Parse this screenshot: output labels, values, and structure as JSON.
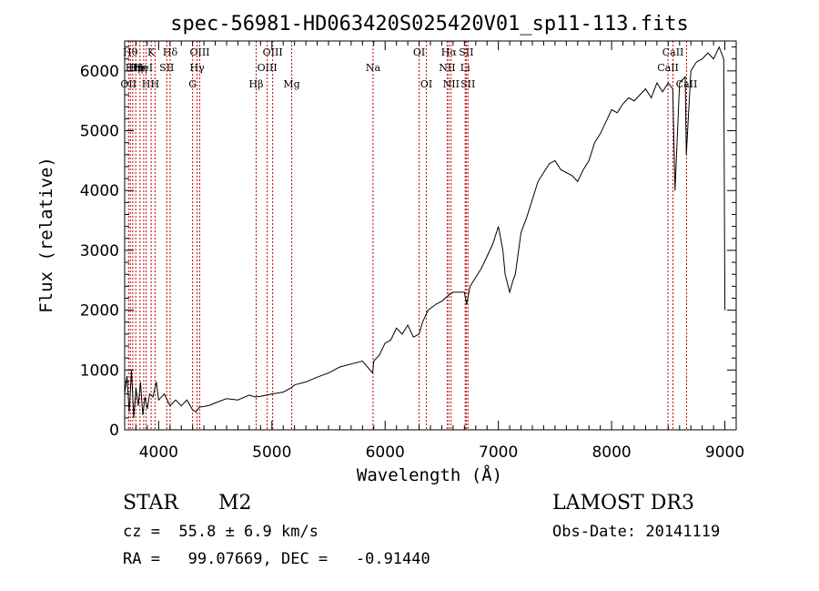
{
  "chart_data": {
    "type": "line",
    "title": "spec-56981-HD063420S025420V01_sp11-113.fits",
    "xlabel": "Wavelength (Å)",
    "ylabel": "Flux (relative)",
    "xlim": [
      3700,
      9100
    ],
    "ylim": [
      0,
      6500
    ],
    "xticks": [
      4000,
      5000,
      6000,
      7000,
      8000,
      9000
    ],
    "yticks": [
      0,
      1000,
      2000,
      3000,
      4000,
      5000,
      6000
    ],
    "grid": false,
    "series": [
      {
        "name": "flux",
        "color": "#000000",
        "x": [
          3700,
          3720,
          3740,
          3760,
          3780,
          3800,
          3820,
          3840,
          3860,
          3880,
          3900,
          3920,
          3950,
          3980,
          4000,
          4050,
          4100,
          4150,
          4200,
          4250,
          4300,
          4330,
          4360,
          4400,
          4450,
          4500,
          4600,
          4700,
          4800,
          4850,
          4900,
          5000,
          5100,
          5170,
          5200,
          5300,
          5400,
          5500,
          5600,
          5700,
          5800,
          5890,
          5900,
          5950,
          6000,
          6050,
          6100,
          6150,
          6200,
          6250,
          6300,
          6330,
          6380,
          6450,
          6500,
          6560,
          6600,
          6700,
          6720,
          6750,
          6800,
          6850,
          6900,
          6950,
          7000,
          7040,
          7060,
          7100,
          7130,
          7150,
          7200,
          7250,
          7300,
          7350,
          7400,
          7450,
          7500,
          7550,
          7600,
          7650,
          7700,
          7750,
          7800,
          7850,
          7900,
          7950,
          8000,
          8050,
          8100,
          8150,
          8200,
          8250,
          8300,
          8350,
          8400,
          8450,
          8500,
          8540,
          8560,
          8600,
          8650,
          8660,
          8700,
          8750,
          8800,
          8850,
          8900,
          8950,
          8990,
          9000
        ],
        "values": [
          600,
          900,
          300,
          1000,
          200,
          700,
          400,
          800,
          250,
          550,
          350,
          600,
          550,
          800,
          500,
          600,
          400,
          500,
          400,
          500,
          330,
          300,
          380,
          390,
          410,
          450,
          520,
          500,
          580,
          550,
          560,
          600,
          630,
          700,
          750,
          800,
          880,
          950,
          1050,
          1100,
          1150,
          950,
          1150,
          1250,
          1450,
          1500,
          1700,
          1600,
          1750,
          1550,
          1600,
          1800,
          2000,
          2100,
          2150,
          2250,
          2300,
          2300,
          2100,
          2400,
          2550,
          2700,
          2900,
          3100,
          3400,
          3000,
          2600,
          2300,
          2500,
          2600,
          3300,
          3550,
          3850,
          4150,
          4300,
          4450,
          4500,
          4350,
          4300,
          4250,
          4150,
          4350,
          4500,
          4800,
          4950,
          5150,
          5350,
          5300,
          5450,
          5550,
          5500,
          5600,
          5700,
          5550,
          5800,
          5650,
          5800,
          5700,
          4000,
          5800,
          5900,
          4600,
          6000,
          6150,
          6200,
          6300,
          6200,
          6400,
          6200,
          2000
        ]
      }
    ],
    "line_labels": [
      {
        "wavelength": 3734,
        "label": "OII",
        "row": 1
      },
      {
        "wavelength": 3750,
        "label": "Hθ",
        "row": 3
      },
      {
        "wavelength": 3771,
        "label": "Hη",
        "row": 2
      },
      {
        "wavelength": 3798,
        "label": "Hη",
        "row": 2
      },
      {
        "wavelength": 3835,
        "label": "Hη",
        "row": 2
      },
      {
        "wavelength": 3868,
        "label": "HeI",
        "row": 2
      },
      {
        "wavelength": 3889,
        "label": "H",
        "row": 1
      },
      {
        "wavelength": 3934,
        "label": "K",
        "row": 3
      },
      {
        "wavelength": 3968,
        "label": "H",
        "row": 1
      },
      {
        "wavelength": 4072,
        "label": "SII",
        "row": 2
      },
      {
        "wavelength": 4102,
        "label": "Hδ",
        "row": 3
      },
      {
        "wavelength": 4300,
        "label": "G",
        "row": 1
      },
      {
        "wavelength": 4340,
        "label": "Hγ",
        "row": 2
      },
      {
        "wavelength": 4363,
        "label": "OIII",
        "row": 3
      },
      {
        "wavelength": 4861,
        "label": "Hβ",
        "row": 1
      },
      {
        "wavelength": 4959,
        "label": "OIII",
        "row": 2
      },
      {
        "wavelength": 5007,
        "label": "OIII",
        "row": 3
      },
      {
        "wavelength": 5175,
        "label": "Mg",
        "row": 1
      },
      {
        "wavelength": 5893,
        "label": "Na",
        "row": 2
      },
      {
        "wavelength": 6300,
        "label": "OI",
        "row": 3
      },
      {
        "wavelength": 6364,
        "label": "OI",
        "row": 1
      },
      {
        "wavelength": 6548,
        "label": "NII",
        "row": 2
      },
      {
        "wavelength": 6563,
        "label": "Hα",
        "row": 3
      },
      {
        "wavelength": 6583,
        "label": "NII",
        "row": 1
      },
      {
        "wavelength": 6707,
        "label": "Li",
        "row": 2
      },
      {
        "wavelength": 6716,
        "label": "SII",
        "row": 3
      },
      {
        "wavelength": 6731,
        "label": "SII",
        "row": 1
      },
      {
        "wavelength": 8498,
        "label": "CaII",
        "row": 2
      },
      {
        "wavelength": 8542,
        "label": "CaII",
        "row": 3
      },
      {
        "wavelength": 8662,
        "label": "CaII",
        "row": 1
      }
    ],
    "line_color": "#c00000"
  },
  "info": {
    "object_class": "STAR",
    "subclass": "M2",
    "survey": "LAMOST DR3",
    "redshift_line": "cz =  55.8 ± 6.9 km/s",
    "obs_date_line": "Obs-Date: 20141119",
    "radec_line": "RA =   99.07669, DEC =   -0.91440"
  }
}
